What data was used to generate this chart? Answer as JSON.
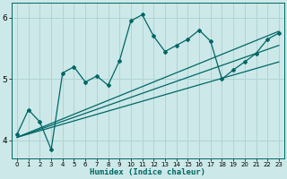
{
  "xlabel": "Humidex (Indice chaleur)",
  "bg_color": "#cce8e8",
  "grid_color": "#b0d4d4",
  "line_color": "#006666",
  "xlim": [
    -0.5,
    23.5
  ],
  "ylim": [
    3.7,
    6.25
  ],
  "yticks": [
    4,
    5,
    6
  ],
  "xticks": [
    0,
    1,
    2,
    3,
    4,
    5,
    6,
    7,
    8,
    9,
    10,
    11,
    12,
    13,
    14,
    15,
    16,
    17,
    18,
    19,
    20,
    21,
    22,
    23
  ],
  "scatter_x": [
    0,
    1,
    2,
    3,
    4,
    5,
    6,
    7,
    8,
    9,
    10,
    11,
    12,
    13,
    14,
    15,
    16,
    17,
    18,
    19,
    20,
    21,
    22,
    23
  ],
  "scatter_y": [
    4.1,
    4.5,
    4.3,
    3.85,
    5.1,
    5.2,
    4.95,
    5.05,
    4.9,
    5.3,
    5.95,
    6.05,
    5.7,
    5.45,
    5.55,
    5.65,
    5.8,
    5.62,
    5.0,
    5.15,
    5.28,
    5.42,
    5.65,
    5.75
  ],
  "line1_x": [
    0,
    23
  ],
  "line1_y": [
    4.05,
    5.78
  ],
  "line2_x": [
    0,
    23
  ],
  "line2_y": [
    4.05,
    5.55
  ],
  "line3_x": [
    0,
    23
  ],
  "line3_y": [
    4.05,
    5.28
  ]
}
